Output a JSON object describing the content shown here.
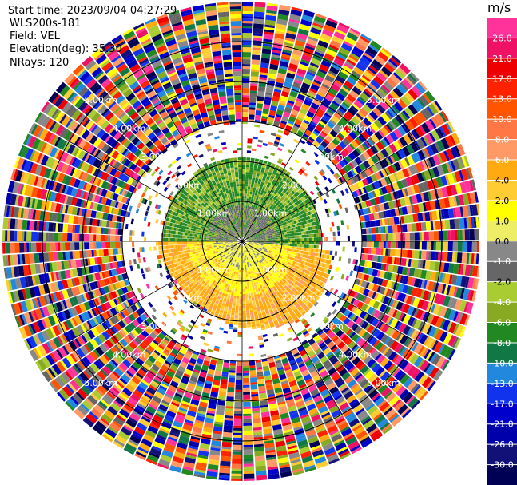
{
  "meta": {
    "start_time": "Start time: 2023/09/04 04:27:29",
    "instrument": "WLS200s-181",
    "field": "Field: VEL",
    "elevation": "Elevation(deg): 35.30",
    "nrays": "NRays: 120"
  },
  "colorbar": {
    "unit": "m/s",
    "ticks": [
      "26.0",
      "21.0",
      "17.0",
      "13.0",
      "10.0",
      "8.0",
      "6.0",
      "4.0",
      "2.0",
      "1.0",
      "0.0",
      "-1.0",
      "-2.0",
      "-4.0",
      "-6.0",
      "-8.0",
      "-10.0",
      "-13.0",
      "-17.0",
      "-21.0",
      "-26.0",
      "-30.0"
    ],
    "colors": [
      "#ff3399",
      "#ee1166",
      "#ee0000",
      "#ff2200",
      "#ff5500",
      "#ff7744",
      "#ff9966",
      "#ffaa11",
      "#ffcc33",
      "#ffff00",
      "#eeee66",
      "#888888",
      "#666666",
      "#aacc33",
      "#88aa22",
      "#228822",
      "#117744",
      "#2288dd",
      "#1133ee",
      "#0000cc",
      "#0000aa",
      "#111177",
      "#000055"
    ]
  },
  "chart_data": {
    "type": "ppi",
    "field": "VEL",
    "units": "m/s",
    "rays": 120,
    "max_range_km": 6.0,
    "range_ring_labels": [
      "1.00km",
      "2.00km",
      "3.00km",
      "4.00km",
      "5.00km"
    ],
    "range_rings_km": [
      1,
      2,
      3,
      4,
      5
    ],
    "structure": {
      "north_sector": "negative velocities (green, -4 to -8 m/s) within ~2 km",
      "south_sector": "positive velocities (yellow/orange, 2 to 6 m/s) within ~2.2 km",
      "beyond_3km": "noisy / random values across full scale"
    }
  }
}
